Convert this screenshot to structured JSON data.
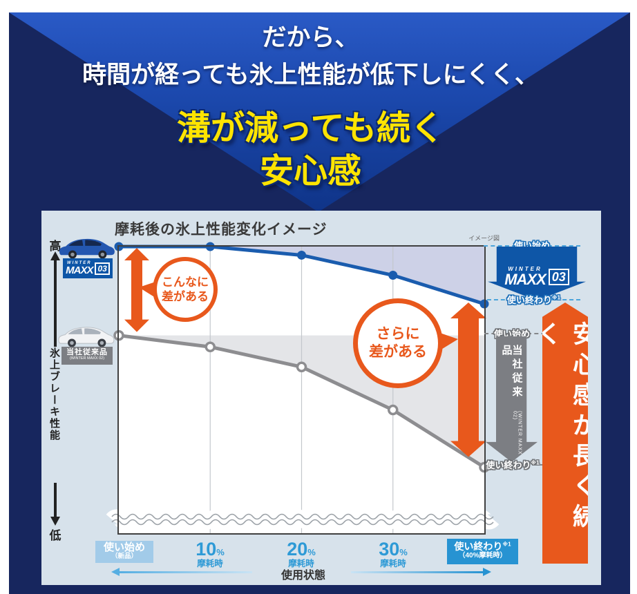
{
  "hero": {
    "line1": "だから、",
    "line2": "時間が経っても氷上性能が低下しにくく、",
    "line3": "溝が減っても続く",
    "line4": "安心感"
  },
  "panel": {
    "title": "摩耗後の氷上性能変化イメージ",
    "note": "イメージ図",
    "y_axis": {
      "high": "高",
      "label": "氷上ブレーキ性能",
      "low": "低"
    },
    "x_axis": {
      "state_label": "使用状態",
      "start": {
        "main": "使い始め",
        "sub": "（新品）"
      },
      "wear": [
        {
          "num": "10",
          "unit": "%",
          "sub": "摩耗時"
        },
        {
          "num": "20",
          "unit": "%",
          "sub": "摩耗時"
        },
        {
          "num": "30",
          "unit": "%",
          "sub": "摩耗時"
        }
      ],
      "end": {
        "main": "使い終わり",
        "sup": "※1",
        "sub": "（40%摩耗時）"
      }
    },
    "legend": {
      "maxx03": {
        "winter": "WINTER",
        "maxx": "MAXX",
        "num": "03"
      },
      "legacy": {
        "main": "当社従来品",
        "sub": "(WINTER MAXX 02)"
      }
    },
    "callouts": {
      "bubble1_line1": "こんなに",
      "bubble1_line2": "差がある",
      "bubble2_line1": "さらに",
      "bubble2_line2": "差がある"
    },
    "side": {
      "blue_start": "使い始め",
      "blue_end": "使い終わり",
      "blue_end_sup": "※1",
      "gray_start": "使い始め",
      "gray_end": "使い終わり",
      "gray_end_sup": "※1"
    },
    "banner": "安心感が長く続く"
  },
  "colors": {
    "navy": "#17265e",
    "hero_blue": "#1c49ae",
    "yellow": "#ffe400",
    "panel_bg": "#d7e2eb",
    "orange": "#e8581c",
    "maxx03_blue": "#0e56a7",
    "line_blue": "#1a5cae",
    "line_gray": "#8d8d90",
    "area_blue": "#cdd1e7",
    "area_gray": "#e4e5e8",
    "label_blue": "#2e9ad6",
    "start_box": "#a2cbe9",
    "end_box": "#2793d2"
  },
  "chart_data": {
    "type": "line",
    "title": "摩耗後の氷上性能変化イメージ",
    "note": "イメージ図",
    "xlabel": "使用状態",
    "ylabel": "氷上ブレーキ性能 (高→低)",
    "categories": [
      "使い始め（新品）",
      "10%摩耗時",
      "20%摩耗時",
      "30%摩耗時",
      "使い終わり※1（40%摩耗時）"
    ],
    "y_scale": "relative index, start of WINTER MAXX 03 = 100",
    "ylim": [
      0,
      100
    ],
    "grid": "vertical only",
    "series": [
      {
        "name": "WINTER MAXX 03",
        "color": "#1a5cae",
        "values": [
          100,
          100,
          97,
          90,
          80
        ]
      },
      {
        "name": "当社従来品 (WINTER MAXX 02)",
        "color": "#8d8d90",
        "values": [
          69,
          65,
          58,
          43,
          23
        ]
      }
    ],
    "annotations": [
      "こんなに差がある",
      "さらに差がある",
      "安心感が長く続く"
    ]
  }
}
